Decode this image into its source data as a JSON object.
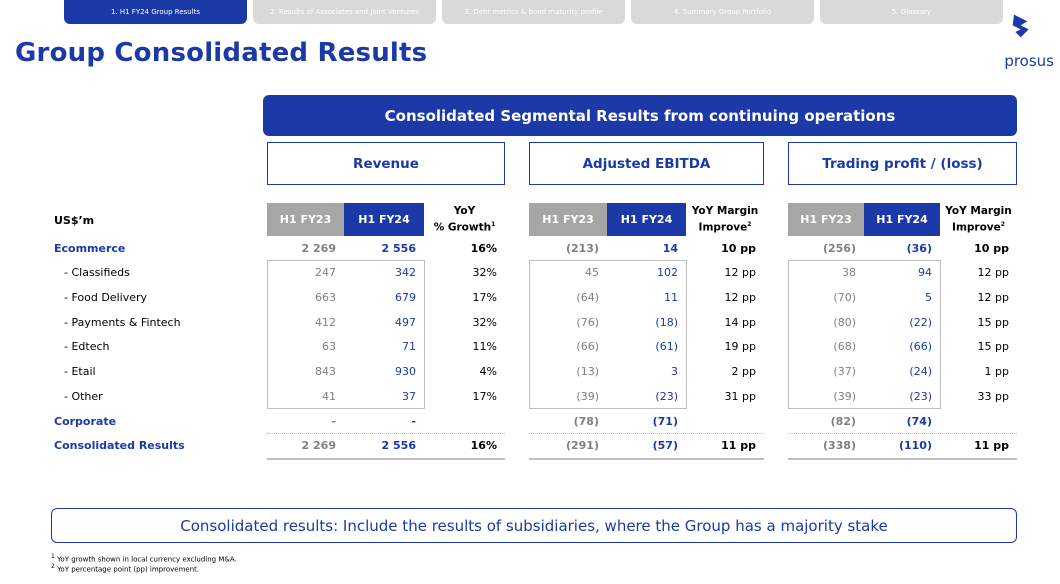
{
  "tabs": [
    {
      "label": "1. H1 FY24 Group Results",
      "active": true
    },
    {
      "label": "2. Results of Associates and Joint Ventures",
      "active": false
    },
    {
      "label": "3. Debt metrics & bond maturity profile",
      "active": false
    },
    {
      "label": "4. Summary Group Portfolio",
      "active": false
    },
    {
      "label": "5. Glossary",
      "active": false
    }
  ],
  "page_title": "Group Consolidated Results",
  "logo_text": "prosus",
  "banner": "Consolidated Segmental Results from continuing operations",
  "sections": {
    "revenue": "Revenue",
    "ebitda": "Adjusted EBITDA",
    "trading": "Trading profit / (loss)"
  },
  "currency_label": "US$’m",
  "col_headers": {
    "prev": "H1 FY23",
    "curr": "H1 FY24",
    "growth_l1": "YoY",
    "growth_l2": "% Growth",
    "growth_sup": "1",
    "margin_l1": "YoY Margin",
    "margin_l2": "Improve",
    "margin_sup": "2"
  },
  "rows": [
    {
      "label": "Ecommerce",
      "rev": [
        "2 269",
        "2 556",
        "16%"
      ],
      "ebitda": [
        "(213)",
        "14",
        "10 pp"
      ],
      "tp": [
        "(256)",
        "(36)",
        "10 pp"
      ]
    },
    {
      "label": "- Classifieds",
      "rev": [
        "247",
        "342",
        "32%"
      ],
      "ebitda": [
        "45",
        "102",
        "12 pp"
      ],
      "tp": [
        "38",
        "94",
        "12 pp"
      ]
    },
    {
      "label": "- Food Delivery",
      "rev": [
        "663",
        "679",
        "17%"
      ],
      "ebitda": [
        "(64)",
        "11",
        "12 pp"
      ],
      "tp": [
        "(70)",
        "5",
        "12 pp"
      ]
    },
    {
      "label": "- Payments & Fintech",
      "rev": [
        "412",
        "497",
        "32%"
      ],
      "ebitda": [
        "(76)",
        "(18)",
        "14 pp"
      ],
      "tp": [
        "(80)",
        "(22)",
        "15 pp"
      ]
    },
    {
      "label": "- Edtech",
      "rev": [
        "63",
        "71",
        "11%"
      ],
      "ebitda": [
        "(66)",
        "(61)",
        "19 pp"
      ],
      "tp": [
        "(68)",
        "(66)",
        "15 pp"
      ]
    },
    {
      "label": "- Etail",
      "rev": [
        "843",
        "930",
        "4%"
      ],
      "ebitda": [
        "(13)",
        "3",
        "2 pp"
      ],
      "tp": [
        "(37)",
        "(24)",
        "1 pp"
      ]
    },
    {
      "label": "- Other",
      "rev": [
        "41",
        "37",
        "17%"
      ],
      "ebitda": [
        "(39)",
        "(23)",
        "31 pp"
      ],
      "tp": [
        "(39)",
        "(23)",
        "33 pp"
      ]
    },
    {
      "label": "Corporate",
      "rev": [
        "-",
        "-",
        ""
      ],
      "ebitda": [
        "(78)",
        "(71)",
        ""
      ],
      "tp": [
        "(82)",
        "(74)",
        ""
      ]
    },
    {
      "label": "Consolidated Results",
      "rev": [
        "2 269",
        "2 556",
        "16%"
      ],
      "ebitda": [
        "(291)",
        "(57)",
        "11 pp"
      ],
      "tp": [
        "(338)",
        "(110)",
        "11 pp"
      ]
    }
  ],
  "note": "Consolidated results: Include the results of subsidiaries, where the Group has a majority stake",
  "footnotes": [
    {
      "sup": "1",
      "text": "YoY growth shown in local currency excluding M&A."
    },
    {
      "sup": "2",
      "text": "YoY percentage point (pp) improvement."
    }
  ],
  "colors": {
    "brand": "#1b3aa8",
    "grey_header": "#a6a6a6",
    "tab_inactive": "#d9d9d9"
  }
}
